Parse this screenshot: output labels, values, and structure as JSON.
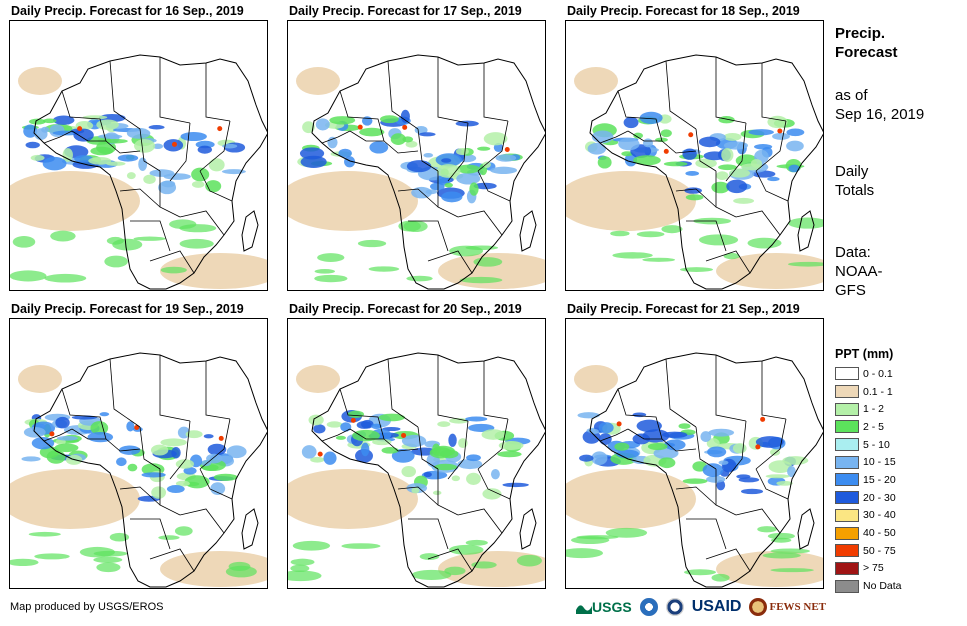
{
  "panels": [
    {
      "title": "Daily Precip. Forecast for 16  Sep., 2019"
    },
    {
      "title": "Daily Precip. Forecast for 17  Sep., 2019"
    },
    {
      "title": "Daily Precip. Forecast for 18  Sep., 2019"
    },
    {
      "title": "Daily Precip. Forecast for 19  Sep., 2019"
    },
    {
      "title": "Daily Precip. Forecast for 20  Sep., 2019"
    },
    {
      "title": "Daily Precip. Forecast for 21  Sep., 2019"
    }
  ],
  "side": {
    "heading_line1": "Precip.",
    "heading_line2": "Forecast",
    "asof_line1": "as of",
    "asof_line2": "Sep 16, 2019",
    "totals_line1": "Daily",
    "totals_line2": "Totals",
    "data_line1": "Data:",
    "data_line2": "NOAA-",
    "data_line3": "GFS"
  },
  "legend": {
    "title": "PPT (mm)",
    "items": [
      {
        "label": "0 - 0.1",
        "color": "#ffffff"
      },
      {
        "label": "0.1 - 1",
        "color": "#eed8b8"
      },
      {
        "label": "1 - 2",
        "color": "#b4f0a8"
      },
      {
        "label": "2 - 5",
        "color": "#5ce25c"
      },
      {
        "label": "5 - 10",
        "color": "#aaeef0"
      },
      {
        "label": "10 - 15",
        "color": "#78b4f0"
      },
      {
        "label": "15 - 20",
        "color": "#3c8cf0"
      },
      {
        "label": "20 - 30",
        "color": "#1e5adc"
      },
      {
        "label": "30 - 40",
        "color": "#fbe683"
      },
      {
        "label": "40 - 50",
        "color": "#f5a000"
      },
      {
        "label": "50 - 75",
        "color": "#f03c00"
      },
      {
        "label": "> 75",
        "color": "#a01414"
      },
      {
        "label": "No Data",
        "color": "#8c8c8c"
      }
    ]
  },
  "credit": "Map produced by USGS/EROS",
  "logos": {
    "usgs": "USGS",
    "usaid": "USAID",
    "fews": "FEWS NET"
  }
}
